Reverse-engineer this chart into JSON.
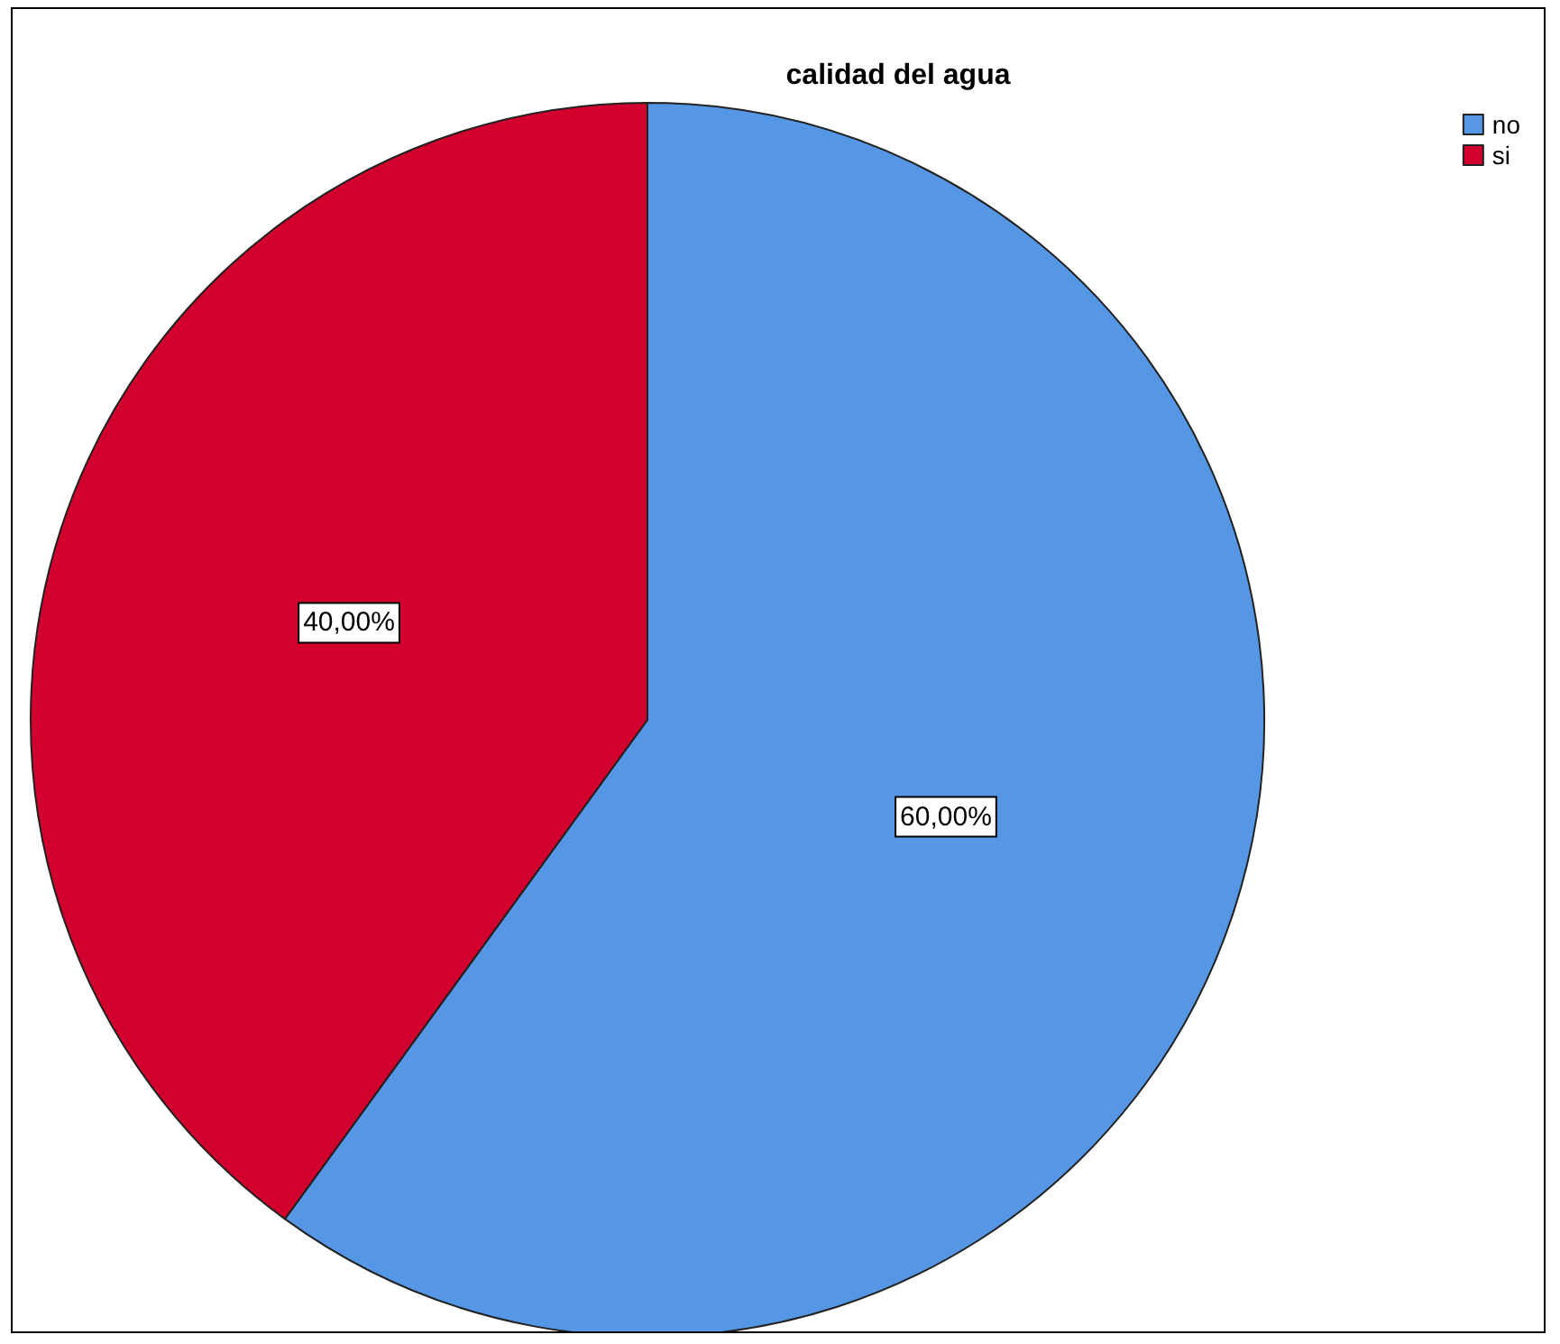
{
  "chart_data": {
    "type": "pie",
    "title": "calidad del agua",
    "categories": [
      "no",
      "si"
    ],
    "values": [
      60,
      40
    ],
    "colors": [
      "#5596e5",
      "#d2002d"
    ],
    "value_labels": [
      "60,00%",
      "40,00%"
    ],
    "legend": "top right"
  }
}
